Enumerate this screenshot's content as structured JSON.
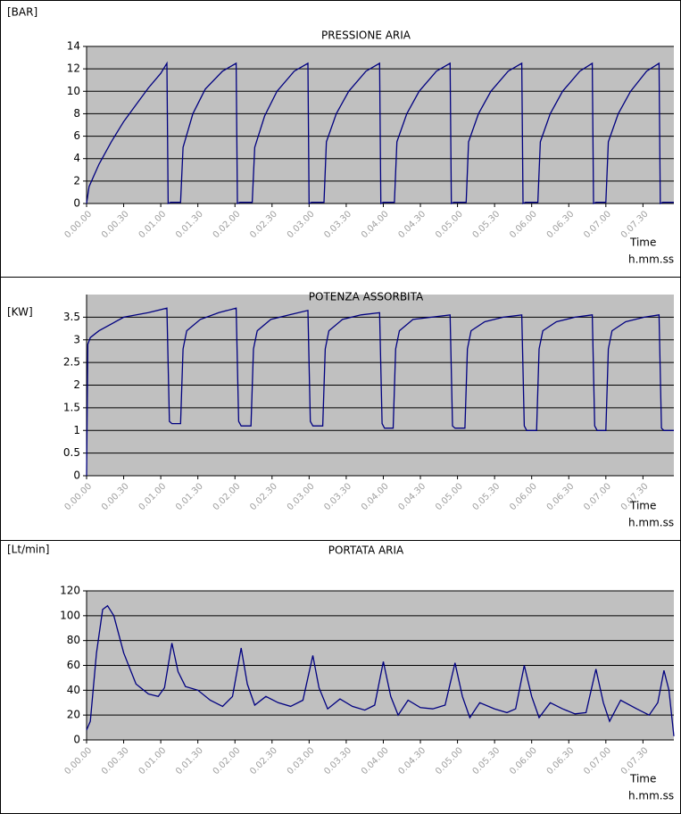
{
  "chart_data": [
    {
      "type": "line",
      "title": "PRESSIONE ARIA",
      "y_label": "[BAR]",
      "x_label": "Time",
      "x_unit": "h.mm.ss",
      "color": "#000080",
      "grid": true,
      "xlim": [
        0,
        475
      ],
      "ylim": [
        0,
        14
      ],
      "yticks": [
        0,
        2,
        4,
        6,
        8,
        10,
        12,
        14
      ],
      "xticks": [
        {
          "value": 0,
          "label": "0.00.00"
        },
        {
          "value": 30,
          "label": "0.00.30"
        },
        {
          "value": 60,
          "label": "0.01.00"
        },
        {
          "value": 90,
          "label": "0.01.30"
        },
        {
          "value": 120,
          "label": "0.02.00"
        },
        {
          "value": 150,
          "label": "0.02.30"
        },
        {
          "value": 180,
          "label": "0.03.00"
        },
        {
          "value": 210,
          "label": "0.03.30"
        },
        {
          "value": 240,
          "label": "0.04.00"
        },
        {
          "value": 270,
          "label": "0.04.30"
        },
        {
          "value": 300,
          "label": "0.05.00"
        },
        {
          "value": 330,
          "label": "0.05.30"
        },
        {
          "value": 360,
          "label": "0.06.00"
        },
        {
          "value": 390,
          "label": "0.06.30"
        },
        {
          "value": 420,
          "label": "0.07.00"
        },
        {
          "value": 450,
          "label": "0.07.30"
        }
      ],
      "x": [
        0,
        2,
        10,
        20,
        30,
        40,
        50,
        60,
        65,
        66,
        68,
        76,
        78,
        86,
        96,
        110,
        121,
        122,
        124,
        134,
        136,
        144,
        154,
        168,
        179,
        180,
        182,
        192,
        194,
        202,
        212,
        226,
        237,
        238,
        240,
        249,
        251,
        259,
        269,
        283,
        294,
        295,
        297,
        307,
        309,
        317,
        327,
        341,
        352,
        353,
        355,
        365,
        367,
        375,
        385,
        399,
        409,
        410,
        412,
        420,
        422,
        430,
        440,
        453,
        463,
        464,
        466,
        475
      ],
      "values": [
        0,
        1.5,
        3.5,
        5.5,
        7.3,
        8.8,
        10.3,
        11.6,
        12.5,
        0,
        0.1,
        0.1,
        5,
        8,
        10.2,
        11.8,
        12.5,
        0,
        0.1,
        0.1,
        5,
        7.8,
        10,
        11.8,
        12.5,
        0,
        0.1,
        0.1,
        5.5,
        8,
        10,
        11.8,
        12.5,
        0,
        0.1,
        0.1,
        5.5,
        8,
        10,
        11.8,
        12.5,
        0,
        0.1,
        0.1,
        5.5,
        8,
        10,
        11.8,
        12.5,
        0,
        0.1,
        0.1,
        5.5,
        8,
        10,
        11.8,
        12.5,
        0,
        0.1,
        0.1,
        5.5,
        8,
        10,
        11.8,
        12.5,
        0,
        0.1,
        0.1
      ]
    },
    {
      "type": "line",
      "title": "POTENZA ASSORBITA",
      "y_label": "[KW]",
      "x_label": "Time",
      "x_unit": "h.mm.ss",
      "color": "#000080",
      "grid": true,
      "xlim": [
        0,
        475
      ],
      "ylim": [
        0,
        4
      ],
      "yticks": [
        0,
        0.5,
        1,
        1.5,
        2,
        2.5,
        3,
        3.5
      ],
      "xticks": [
        {
          "value": 0,
          "label": "0.00.00"
        },
        {
          "value": 30,
          "label": "0.00.30"
        },
        {
          "value": 60,
          "label": "0.01.00"
        },
        {
          "value": 90,
          "label": "0.01.30"
        },
        {
          "value": 120,
          "label": "0.02.00"
        },
        {
          "value": 150,
          "label": "0.02.30"
        },
        {
          "value": 180,
          "label": "0.03.00"
        },
        {
          "value": 210,
          "label": "0.03.30"
        },
        {
          "value": 240,
          "label": "0.04.00"
        },
        {
          "value": 270,
          "label": "0.04.30"
        },
        {
          "value": 300,
          "label": "0.05.00"
        },
        {
          "value": 330,
          "label": "0.05.30"
        },
        {
          "value": 360,
          "label": "0.06.00"
        },
        {
          "value": 390,
          "label": "0.06.30"
        },
        {
          "value": 420,
          "label": "0.07.00"
        },
        {
          "value": 450,
          "label": "0.07.30"
        }
      ],
      "x": [
        0,
        1,
        3,
        10,
        30,
        50,
        65,
        67,
        69,
        76,
        78,
        81,
        92,
        107,
        121,
        123,
        125,
        133,
        135,
        138,
        149,
        164,
        179,
        181,
        183,
        191,
        193,
        196,
        207,
        222,
        237,
        239,
        241,
        248,
        250,
        253,
        264,
        279,
        294,
        296,
        298,
        306,
        308,
        311,
        322,
        337,
        352,
        354,
        356,
        364,
        366,
        369,
        380,
        395,
        409,
        411,
        413,
        420,
        422,
        425,
        436,
        451,
        463,
        465,
        467,
        475
      ],
      "values": [
        0,
        2.9,
        3.05,
        3.2,
        3.5,
        3.6,
        3.7,
        1.2,
        1.15,
        1.15,
        2.8,
        3.2,
        3.45,
        3.6,
        3.7,
        1.2,
        1.1,
        1.1,
        2.8,
        3.2,
        3.45,
        3.55,
        3.65,
        1.2,
        1.1,
        1.1,
        2.8,
        3.2,
        3.45,
        3.55,
        3.6,
        1.15,
        1.05,
        1.05,
        2.8,
        3.2,
        3.45,
        3.5,
        3.55,
        1.1,
        1.05,
        1.05,
        2.8,
        3.2,
        3.4,
        3.5,
        3.55,
        1.1,
        1.0,
        1.0,
        2.8,
        3.2,
        3.4,
        3.5,
        3.55,
        1.1,
        1.0,
        1.0,
        2.8,
        3.2,
        3.4,
        3.5,
        3.55,
        1.05,
        1.0,
        1.0
      ]
    },
    {
      "type": "line",
      "title": "PORTATA ARIA",
      "y_label": "[Lt/min]",
      "x_label": "Time",
      "x_unit": "h.mm.ss",
      "color": "#000080",
      "grid": true,
      "xlim": [
        0,
        475
      ],
      "ylim": [
        0,
        120
      ],
      "yticks": [
        0,
        20,
        40,
        60,
        80,
        100,
        120
      ],
      "xticks": [
        {
          "value": 0,
          "label": "0.00.00"
        },
        {
          "value": 30,
          "label": "0.00.30"
        },
        {
          "value": 60,
          "label": "0.01.00"
        },
        {
          "value": 90,
          "label": "0.01.30"
        },
        {
          "value": 120,
          "label": "0.02.00"
        },
        {
          "value": 150,
          "label": "0.02.30"
        },
        {
          "value": 180,
          "label": "0.03.00"
        },
        {
          "value": 210,
          "label": "0.03.30"
        },
        {
          "value": 240,
          "label": "0.04.00"
        },
        {
          "value": 270,
          "label": "0.04.30"
        },
        {
          "value": 300,
          "label": "0.05.00"
        },
        {
          "value": 330,
          "label": "0.05.30"
        },
        {
          "value": 360,
          "label": "0.06.00"
        },
        {
          "value": 390,
          "label": "0.06.30"
        },
        {
          "value": 420,
          "label": "0.07.00"
        },
        {
          "value": 450,
          "label": "0.07.30"
        }
      ],
      "x": [
        0,
        3,
        8,
        13,
        17,
        22,
        30,
        40,
        50,
        58,
        63,
        69,
        74,
        80,
        90,
        100,
        110,
        118,
        125,
        130,
        136,
        145,
        155,
        165,
        175,
        183,
        188,
        195,
        205,
        215,
        225,
        233,
        240,
        246,
        252,
        260,
        270,
        280,
        290,
        298,
        304,
        310,
        318,
        330,
        340,
        347,
        354,
        360,
        366,
        375,
        385,
        395,
        404,
        412,
        418,
        423,
        432,
        445,
        455,
        462,
        467,
        471,
        475
      ],
      "values": [
        8,
        15,
        70,
        105,
        108,
        100,
        70,
        45,
        37,
        35,
        42,
        78,
        55,
        43,
        40,
        32,
        27,
        35,
        74,
        45,
        28,
        35,
        30,
        27,
        32,
        68,
        42,
        25,
        33,
        27,
        24,
        28,
        63,
        35,
        20,
        32,
        26,
        25,
        28,
        62,
        35,
        18,
        30,
        25,
        22,
        25,
        60,
        35,
        18,
        30,
        25,
        21,
        22,
        57,
        30,
        15,
        32,
        25,
        20,
        30,
        56,
        40,
        3
      ]
    }
  ]
}
